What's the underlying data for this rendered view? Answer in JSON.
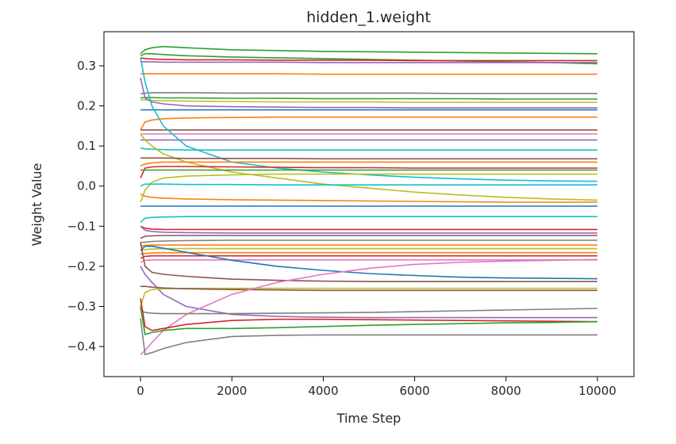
{
  "chart_data": {
    "type": "line",
    "title": "hidden_1.weight",
    "xlabel": "Time Step",
    "ylabel": "Weight Value",
    "xlim": [
      -800,
      10800
    ],
    "ylim": [
      -0.475,
      0.385
    ],
    "x_ticks": [
      0,
      2000,
      4000,
      6000,
      8000,
      10000
    ],
    "x_tick_labels": [
      "0",
      "2000",
      "4000",
      "6000",
      "8000",
      "10000"
    ],
    "y_ticks": [
      0.3,
      0.2,
      0.1,
      0.0,
      -0.1,
      -0.2,
      -0.3,
      -0.4
    ],
    "y_tick_labels": [
      "0.3",
      "0.2",
      "0.1",
      "0.0",
      "−0.1",
      "−0.2",
      "−0.3",
      "−0.4"
    ],
    "grid": false,
    "legend": "none",
    "x": [
      0,
      100,
      250,
      500,
      1000,
      2000,
      3000,
      4000,
      5000,
      6000,
      7000,
      8000,
      9000,
      10000
    ],
    "series": [
      {
        "color": "#2ca02c",
        "values": [
          0.33,
          0.34,
          0.345,
          0.348,
          0.345,
          0.34,
          0.338,
          0.336,
          0.335,
          0.334,
          0.333,
          0.332,
          0.331,
          0.33
        ]
      },
      {
        "color": "#2ca02c",
        "values": [
          0.325,
          0.33,
          0.33,
          0.328,
          0.325,
          0.322,
          0.32,
          0.318,
          0.316,
          0.314,
          0.312,
          0.31,
          0.308,
          0.305
        ]
      },
      {
        "color": "#d62728",
        "values": [
          0.32,
          0.318,
          0.317,
          0.316,
          0.315,
          0.315,
          0.314,
          0.314,
          0.314,
          0.313,
          0.313,
          0.313,
          0.313,
          0.313
        ]
      },
      {
        "color": "#9467bd",
        "values": [
          0.31,
          0.31,
          0.31,
          0.309,
          0.309,
          0.309,
          0.309,
          0.308,
          0.308,
          0.308,
          0.308,
          0.308,
          0.308,
          0.308
        ]
      },
      {
        "color": "#ff7f0e",
        "values": [
          0.28,
          0.28,
          0.28,
          0.28,
          0.28,
          0.28,
          0.28,
          0.279,
          0.279,
          0.279,
          0.279,
          0.279,
          0.279,
          0.279
        ]
      },
      {
        "color": "#7f7f7f",
        "values": [
          0.23,
          0.232,
          0.233,
          0.233,
          0.233,
          0.232,
          0.232,
          0.232,
          0.232,
          0.232,
          0.231,
          0.231,
          0.231,
          0.231
        ]
      },
      {
        "color": "#2ca02c",
        "values": [
          0.22,
          0.221,
          0.221,
          0.22,
          0.22,
          0.219,
          0.219,
          0.218,
          0.218,
          0.218,
          0.218,
          0.217,
          0.217,
          0.217
        ]
      },
      {
        "color": "#bcbd22",
        "values": [
          0.215,
          0.215,
          0.214,
          0.213,
          0.212,
          0.211,
          0.21,
          0.21,
          0.21,
          0.209,
          0.209,
          0.209,
          0.209,
          0.209
        ]
      },
      {
        "color": "#9467bd",
        "values": [
          0.27,
          0.22,
          0.21,
          0.205,
          0.2,
          0.198,
          0.197,
          0.196,
          0.196,
          0.195,
          0.195,
          0.195,
          0.195,
          0.195
        ]
      },
      {
        "color": "#1f77b4",
        "values": [
          0.19,
          0.19,
          0.19,
          0.19,
          0.19,
          0.19,
          0.19,
          0.19,
          0.19,
          0.19,
          0.19,
          0.19,
          0.19,
          0.19
        ]
      },
      {
        "color": "#ff7f0e",
        "values": [
          0.14,
          0.16,
          0.165,
          0.168,
          0.17,
          0.171,
          0.172,
          0.172,
          0.172,
          0.172,
          0.172,
          0.172,
          0.172,
          0.172
        ]
      },
      {
        "color": "#8c564b",
        "values": [
          0.14,
          0.14,
          0.14,
          0.14,
          0.14,
          0.14,
          0.14,
          0.14,
          0.14,
          0.14,
          0.14,
          0.14,
          0.14,
          0.14
        ]
      },
      {
        "color": "#e377c2",
        "values": [
          0.13,
          0.13,
          0.13,
          0.13,
          0.13,
          0.13,
          0.13,
          0.13,
          0.13,
          0.13,
          0.13,
          0.13,
          0.13,
          0.13
        ]
      },
      {
        "color": "#9467bd",
        "values": [
          0.115,
          0.115,
          0.115,
          0.115,
          0.115,
          0.115,
          0.115,
          0.115,
          0.115,
          0.115,
          0.115,
          0.115,
          0.115,
          0.115
        ]
      },
      {
        "color": "#17becf",
        "values": [
          0.32,
          0.26,
          0.2,
          0.15,
          0.1,
          0.06,
          0.045,
          0.035,
          0.028,
          0.022,
          0.018,
          0.015,
          0.013,
          0.012
        ]
      },
      {
        "color": "#17becf",
        "values": [
          0.095,
          0.093,
          0.092,
          0.091,
          0.09,
          0.09,
          0.09,
          0.09,
          0.09,
          0.09,
          0.09,
          0.09,
          0.09,
          0.09
        ]
      },
      {
        "color": "#bcbd22",
        "values": [
          0.13,
          0.115,
          0.1,
          0.08,
          0.06,
          0.035,
          0.02,
          0.005,
          -0.005,
          -0.015,
          -0.022,
          -0.028,
          -0.032,
          -0.035
        ]
      },
      {
        "color": "#8c564b",
        "values": [
          0.07,
          0.07,
          0.07,
          0.07,
          0.069,
          0.069,
          0.069,
          0.068,
          0.068,
          0.068,
          0.068,
          0.068,
          0.068,
          0.068
        ]
      },
      {
        "color": "#ff7f0e",
        "values": [
          0.05,
          0.055,
          0.058,
          0.06,
          0.06,
          0.06,
          0.06,
          0.06,
          0.06,
          0.06,
          0.06,
          0.06,
          0.06,
          0.06
        ]
      },
      {
        "color": "#d62728",
        "values": [
          0.02,
          0.045,
          0.048,
          0.049,
          0.049,
          0.048,
          0.047,
          0.046,
          0.046,
          0.045,
          0.045,
          0.045,
          0.045,
          0.045
        ]
      },
      {
        "color": "#2ca02c",
        "values": [
          0.04,
          0.04,
          0.04,
          0.04,
          0.04,
          0.04,
          0.04,
          0.04,
          0.04,
          0.04,
          0.04,
          0.04,
          0.04,
          0.04
        ]
      },
      {
        "color": "#bcbd22",
        "values": [
          -0.04,
          -0.01,
          0.01,
          0.02,
          0.025,
          0.028,
          0.03,
          0.03,
          0.03,
          0.03,
          0.03,
          0.03,
          0.03,
          0.03
        ]
      },
      {
        "color": "#17becf",
        "values": [
          0.0,
          0.005,
          0.005,
          0.005,
          0.004,
          0.004,
          0.003,
          0.003,
          0.003,
          0.003,
          0.003,
          0.003,
          0.003,
          0.003
        ]
      },
      {
        "color": "#ff7f0e",
        "values": [
          -0.02,
          -0.025,
          -0.028,
          -0.03,
          -0.032,
          -0.034,
          -0.035,
          -0.036,
          -0.037,
          -0.038,
          -0.039,
          -0.04,
          -0.04,
          -0.04
        ]
      },
      {
        "color": "#1f77b4",
        "values": [
          -0.05,
          -0.05,
          -0.05,
          -0.05,
          -0.05,
          -0.05,
          -0.05,
          -0.05,
          -0.05,
          -0.05,
          -0.05,
          -0.05,
          -0.05,
          -0.05
        ]
      },
      {
        "color": "#17becf",
        "values": [
          -0.09,
          -0.08,
          -0.078,
          -0.077,
          -0.076,
          -0.076,
          -0.076,
          -0.076,
          -0.076,
          -0.076,
          -0.076,
          -0.076,
          -0.076,
          -0.076
        ]
      },
      {
        "color": "#d62728",
        "values": [
          -0.1,
          -0.105,
          -0.107,
          -0.108,
          -0.108,
          -0.108,
          -0.108,
          -0.108,
          -0.108,
          -0.108,
          -0.108,
          -0.108,
          -0.108,
          -0.108
        ]
      },
      {
        "color": "#9467bd",
        "values": [
          -0.1,
          -0.11,
          -0.113,
          -0.115,
          -0.116,
          -0.117,
          -0.117,
          -0.117,
          -0.117,
          -0.117,
          -0.117,
          -0.117,
          -0.117,
          -0.117
        ]
      },
      {
        "color": "#8c564b",
        "values": [
          -0.13,
          -0.125,
          -0.124,
          -0.123,
          -0.123,
          -0.123,
          -0.123,
          -0.123,
          -0.123,
          -0.123,
          -0.123,
          -0.123,
          -0.123,
          -0.123
        ]
      },
      {
        "color": "#7f7f7f",
        "values": [
          -0.14,
          -0.14,
          -0.138,
          -0.137,
          -0.136,
          -0.135,
          -0.135,
          -0.135,
          -0.135,
          -0.135,
          -0.135,
          -0.135,
          -0.135,
          -0.135
        ]
      },
      {
        "color": "#ff7f0e",
        "values": [
          -0.15,
          -0.148,
          -0.147,
          -0.147,
          -0.147,
          -0.147,
          -0.147,
          -0.147,
          -0.147,
          -0.147,
          -0.147,
          -0.147,
          -0.147,
          -0.147
        ]
      },
      {
        "color": "#bcbd22",
        "values": [
          -0.16,
          -0.158,
          -0.157,
          -0.156,
          -0.156,
          -0.156,
          -0.156,
          -0.156,
          -0.156,
          -0.156,
          -0.156,
          -0.156,
          -0.156,
          -0.156
        ]
      },
      {
        "color": "#ff7f0e",
        "values": [
          -0.17,
          -0.168,
          -0.167,
          -0.166,
          -0.166,
          -0.166,
          -0.166,
          -0.166,
          -0.166,
          -0.166,
          -0.166,
          -0.166,
          -0.166,
          -0.166
        ]
      },
      {
        "color": "#d62728",
        "values": [
          -0.18,
          -0.175,
          -0.174,
          -0.174,
          -0.174,
          -0.174,
          -0.174,
          -0.174,
          -0.174,
          -0.174,
          -0.174,
          -0.174,
          -0.174,
          -0.174
        ]
      },
      {
        "color": "#e377c2",
        "values": [
          -0.19,
          -0.185,
          -0.184,
          -0.184,
          -0.184,
          -0.184,
          -0.184,
          -0.184,
          -0.184,
          -0.184,
          -0.184,
          -0.184,
          -0.184,
          -0.184
        ]
      },
      {
        "color": "#1f77b4",
        "values": [
          -0.16,
          -0.15,
          -0.15,
          -0.155,
          -0.165,
          -0.185,
          -0.2,
          -0.21,
          -0.218,
          -0.223,
          -0.227,
          -0.229,
          -0.23,
          -0.231
        ]
      },
      {
        "color": "#8c564b",
        "values": [
          -0.14,
          -0.2,
          -0.215,
          -0.22,
          -0.225,
          -0.232,
          -0.235,
          -0.237,
          -0.238,
          -0.238,
          -0.238,
          -0.238,
          -0.238,
          -0.238
        ]
      },
      {
        "color": "#9467bd",
        "values": [
          -0.2,
          -0.22,
          -0.24,
          -0.27,
          -0.3,
          -0.32,
          -0.325,
          -0.327,
          -0.328,
          -0.328,
          -0.328,
          -0.328,
          -0.328,
          -0.328
        ]
      },
      {
        "color": "#bcbd22",
        "values": [
          -0.3,
          -0.265,
          -0.258,
          -0.256,
          -0.255,
          -0.255,
          -0.255,
          -0.255,
          -0.255,
          -0.255,
          -0.255,
          -0.255,
          -0.255,
          -0.255
        ]
      },
      {
        "color": "#8c564b",
        "values": [
          -0.25,
          -0.25,
          -0.252,
          -0.254,
          -0.256,
          -0.258,
          -0.259,
          -0.26,
          -0.26,
          -0.26,
          -0.26,
          -0.26,
          -0.26,
          -0.26
        ]
      },
      {
        "color": "#e377c2",
        "values": [
          -0.42,
          -0.41,
          -0.39,
          -0.36,
          -0.32,
          -0.27,
          -0.24,
          -0.22,
          -0.205,
          -0.195,
          -0.19,
          -0.187,
          -0.185,
          -0.183
        ]
      },
      {
        "color": "#7f7f7f",
        "values": [
          -0.31,
          -0.315,
          -0.317,
          -0.318,
          -0.318,
          -0.318,
          -0.317,
          -0.316,
          -0.315,
          -0.313,
          -0.311,
          -0.309,
          -0.307,
          -0.305
        ]
      },
      {
        "color": "#d62728",
        "values": [
          -0.28,
          -0.35,
          -0.36,
          -0.355,
          -0.345,
          -0.335,
          -0.332,
          -0.332,
          -0.333,
          -0.334,
          -0.335,
          -0.336,
          -0.337,
          -0.338
        ]
      },
      {
        "color": "#2ca02c",
        "values": [
          -0.3,
          -0.37,
          -0.365,
          -0.36,
          -0.355,
          -0.355,
          -0.353,
          -0.35,
          -0.347,
          -0.345,
          -0.343,
          -0.341,
          -0.34,
          -0.338
        ]
      },
      {
        "color": "#7f7f7f",
        "values": [
          -0.33,
          -0.42,
          -0.415,
          -0.405,
          -0.39,
          -0.375,
          -0.372,
          -0.371,
          -0.371,
          -0.371,
          -0.371,
          -0.371,
          -0.371,
          -0.371
        ]
      }
    ]
  }
}
